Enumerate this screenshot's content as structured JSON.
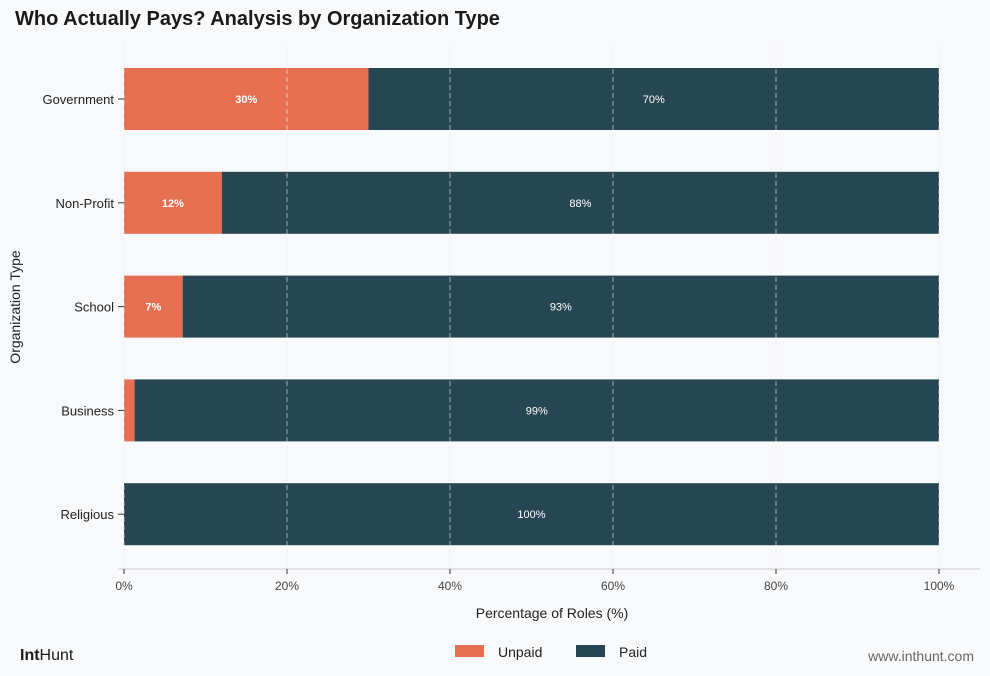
{
  "chart_data": {
    "type": "bar",
    "orientation": "horizontal",
    "stacked": true,
    "title": "Who Actually Pays? Analysis by Organization Type",
    "xlabel": "Percentage of Roles (%)",
    "ylabel": "Organization Type",
    "xlim": [
      0,
      100
    ],
    "xticks": [
      "0%",
      "20%",
      "40%",
      "60%",
      "80%",
      "100%"
    ],
    "grid": "vertical dashed",
    "legend_position": "bottom-center",
    "categories": [
      "Government",
      "Non-Profit",
      "School",
      "Business",
      "Religious"
    ],
    "series": [
      {
        "name": "Unpaid",
        "color": "#e76f51",
        "values": [
          30,
          12,
          7.2,
          1.3,
          0
        ],
        "labels": [
          "30%",
          "12%",
          "7%",
          "",
          ""
        ]
      },
      {
        "name": "Paid",
        "color": "#264653",
        "values": [
          70,
          88,
          92.8,
          98.7,
          100
        ],
        "labels": [
          "70%",
          "88%",
          "93%",
          "99%",
          "100%"
        ]
      }
    ]
  },
  "footer": {
    "brand_bold": "Int",
    "brand_regular": "Hunt",
    "url": "www.inthunt.com"
  }
}
